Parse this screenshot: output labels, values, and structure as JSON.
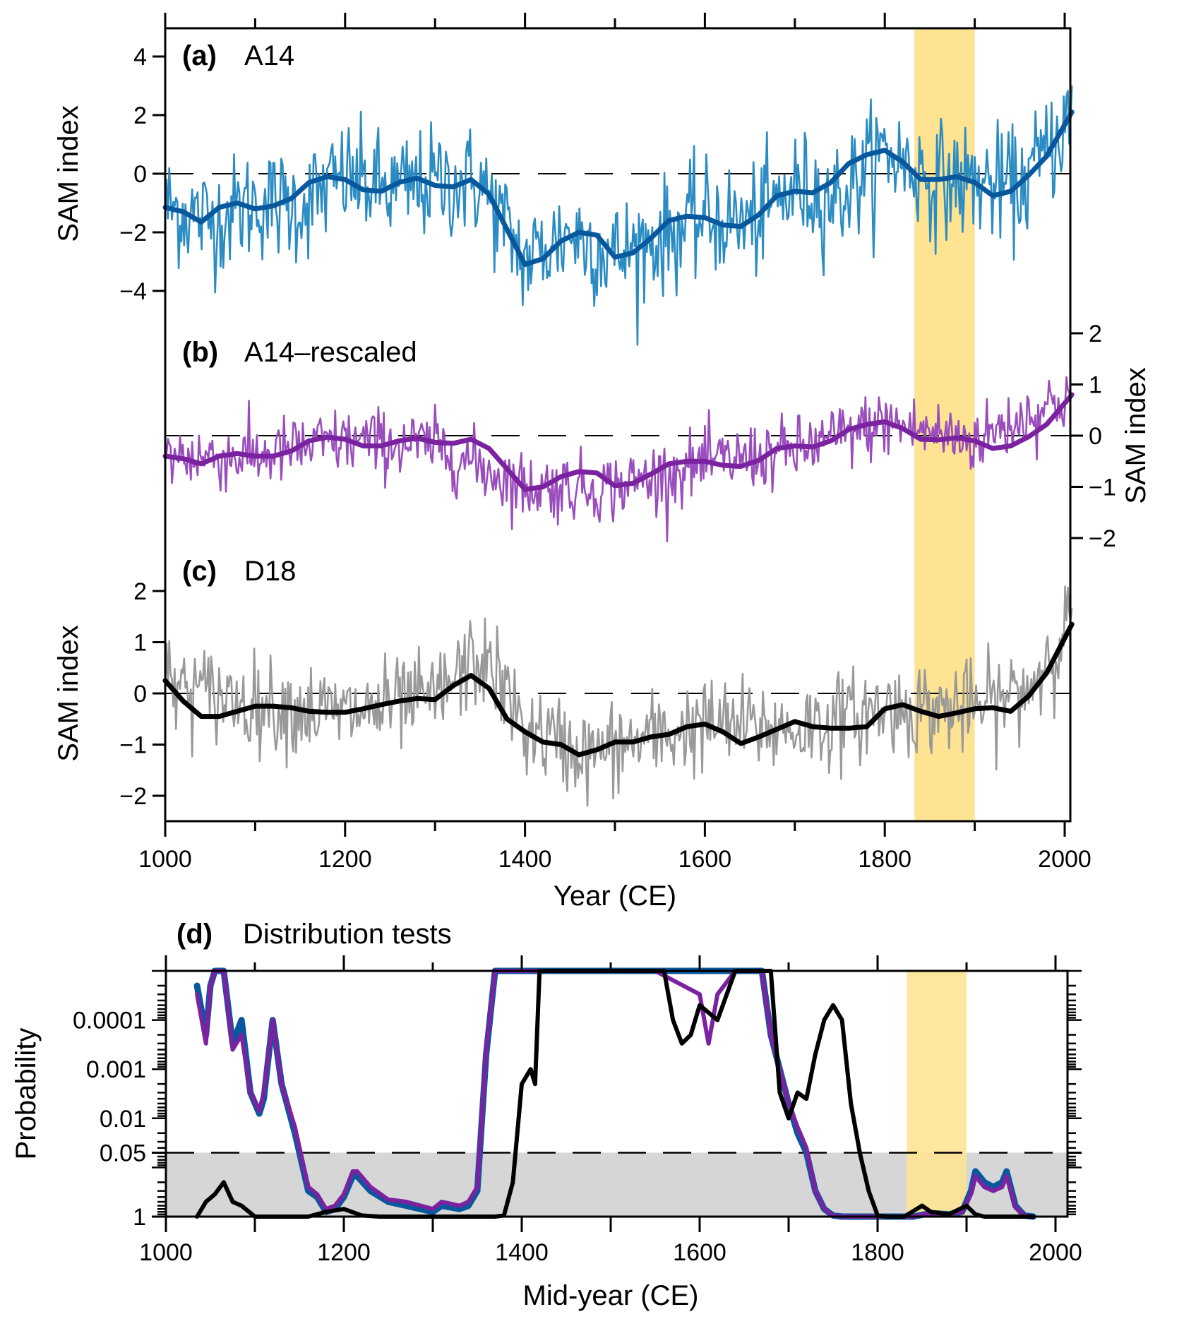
{
  "colors": {
    "a14_raw": "#2b8cc4",
    "a14_smooth": "#08589e",
    "rescaled_raw": "#9a4dbd",
    "rescaled_smooth": "#7b22a0",
    "d18_raw": "#999999",
    "d18_smooth": "#000000",
    "highlight_band": "#fde392",
    "significance_fill": "#d6d6d6"
  },
  "chart_data": [
    {
      "panel": "a",
      "type": "line",
      "letter": "(a)",
      "title": "A14",
      "xlabel": "",
      "ylabel": "SAM index",
      "ylabel_side": "left",
      "xlim": [
        1000,
        2010
      ],
      "ylim": [
        -5,
        5
      ],
      "yticks": [
        -4,
        -2,
        0,
        2,
        4
      ],
      "ytick_labels": [
        "−4",
        "−2",
        "0",
        "2",
        "4"
      ],
      "reference_line": 0,
      "highlight": [
        1833,
        1900
      ],
      "series": [
        {
          "name": "A14 annual",
          "style": "thin",
          "noise_amplitude": 1.6,
          "x": [
            1000,
            1050,
            1100,
            1150,
            1200,
            1250,
            1300,
            1350,
            1400,
            1450,
            1500,
            1550,
            1600,
            1650,
            1700,
            1750,
            1800,
            1850,
            1900,
            1950,
            2008
          ],
          "values": [
            -1.1,
            -1.6,
            -1.0,
            -1.1,
            -0.1,
            -0.6,
            -0.3,
            -0.3,
            -3.0,
            -2.0,
            -2.8,
            -2.2,
            -1.5,
            -1.7,
            -0.5,
            -0.8,
            0.8,
            -0.2,
            -0.3,
            -0.5,
            2.0
          ]
        },
        {
          "name": "A14 smoothed",
          "style": "thick",
          "x": [
            1000,
            1020,
            1040,
            1060,
            1080,
            1100,
            1120,
            1140,
            1160,
            1180,
            1200,
            1220,
            1240,
            1260,
            1280,
            1300,
            1320,
            1340,
            1360,
            1380,
            1400,
            1420,
            1440,
            1460,
            1480,
            1500,
            1520,
            1540,
            1560,
            1580,
            1600,
            1620,
            1640,
            1660,
            1680,
            1700,
            1720,
            1740,
            1760,
            1780,
            1800,
            1820,
            1840,
            1860,
            1880,
            1900,
            1920,
            1940,
            1960,
            1980,
            2008
          ],
          "values": [
            -1.15,
            -1.3,
            -1.65,
            -1.15,
            -1.0,
            -1.2,
            -1.1,
            -0.85,
            -0.3,
            -0.1,
            -0.2,
            -0.55,
            -0.6,
            -0.3,
            -0.15,
            -0.4,
            -0.45,
            -0.2,
            -0.7,
            -1.9,
            -3.1,
            -2.9,
            -2.3,
            -2.0,
            -2.1,
            -2.85,
            -2.7,
            -2.2,
            -1.6,
            -1.45,
            -1.5,
            -1.75,
            -1.8,
            -1.4,
            -0.75,
            -0.6,
            -0.65,
            -0.3,
            0.35,
            0.65,
            0.8,
            0.4,
            -0.2,
            -0.2,
            -0.1,
            -0.3,
            -0.75,
            -0.6,
            -0.05,
            0.6,
            2.1
          ]
        }
      ]
    },
    {
      "panel": "b",
      "type": "line",
      "letter": "(b)",
      "title": "A14–rescaled",
      "xlabel": "",
      "ylabel": "SAM index",
      "ylabel_side": "right",
      "xlim": [
        1000,
        2010
      ],
      "ylim": [
        -2.3,
        2.3
      ],
      "yticks": [
        -2,
        -1,
        0,
        1,
        2
      ],
      "ytick_labels": [
        "−2",
        "−1",
        "0",
        "1",
        "2"
      ],
      "reference_line": 0,
      "highlight": [
        1833,
        1900
      ],
      "series": [
        {
          "name": "A14-rescaled annual",
          "style": "thin",
          "noise_amplitude": 0.55,
          "x": [
            1000,
            1100,
            1200,
            1300,
            1400,
            1500,
            1600,
            1700,
            1800,
            1900,
            2008
          ],
          "values": [
            -0.4,
            -0.4,
            -0.1,
            -0.2,
            -1.0,
            -1.0,
            -0.55,
            -0.3,
            0.25,
            -0.1,
            0.8
          ]
        },
        {
          "name": "A14-rescaled smoothed",
          "style": "thick",
          "x": [
            1000,
            1020,
            1040,
            1060,
            1080,
            1100,
            1120,
            1140,
            1160,
            1180,
            1200,
            1220,
            1240,
            1260,
            1280,
            1300,
            1320,
            1340,
            1360,
            1380,
            1400,
            1420,
            1440,
            1460,
            1480,
            1500,
            1520,
            1540,
            1560,
            1580,
            1600,
            1620,
            1640,
            1660,
            1680,
            1700,
            1720,
            1740,
            1760,
            1780,
            1800,
            1820,
            1840,
            1860,
            1880,
            1900,
            1920,
            1940,
            1960,
            1980,
            2008
          ],
          "values": [
            -0.4,
            -0.45,
            -0.55,
            -0.4,
            -0.35,
            -0.4,
            -0.4,
            -0.3,
            -0.1,
            -0.03,
            -0.07,
            -0.2,
            -0.2,
            -0.1,
            -0.05,
            -0.13,
            -0.15,
            -0.07,
            -0.25,
            -0.65,
            -1.05,
            -1.0,
            -0.8,
            -0.7,
            -0.73,
            -0.98,
            -0.93,
            -0.75,
            -0.55,
            -0.5,
            -0.5,
            -0.58,
            -0.6,
            -0.48,
            -0.25,
            -0.2,
            -0.22,
            -0.1,
            0.12,
            0.22,
            0.27,
            0.14,
            -0.07,
            -0.08,
            -0.04,
            -0.1,
            -0.25,
            -0.2,
            -0.02,
            0.22,
            0.8
          ]
        }
      ]
    },
    {
      "panel": "c",
      "type": "line",
      "letter": "(c)",
      "title": "D18",
      "xlabel": "Year (CE)",
      "ylabel": "SAM index",
      "ylabel_side": "left",
      "xlim": [
        1000,
        2010
      ],
      "ylim": [
        -2.5,
        2.5
      ],
      "yticks": [
        -2,
        -1,
        0,
        1,
        2
      ],
      "ytick_labels": [
        "−2",
        "−1",
        "0",
        "1",
        "2"
      ],
      "xticks": [
        1000,
        1200,
        1400,
        1600,
        1800,
        2000
      ],
      "xtick_labels": [
        "1000",
        "1200",
        "1400",
        "1600",
        "1800",
        "2000"
      ],
      "reference_line": 0,
      "highlight": [
        1833,
        1900
      ],
      "series": [
        {
          "name": "D18 annual",
          "style": "thin",
          "noise_amplitude": 0.75,
          "x": [
            1000,
            1100,
            1200,
            1300,
            1340,
            1360,
            1400,
            1470,
            1600,
            1700,
            1800,
            1900,
            1960,
            2008
          ],
          "values": [
            0.2,
            -0.2,
            -0.4,
            -0.1,
            0.6,
            0.6,
            -0.7,
            -1.2,
            -0.6,
            -0.7,
            -0.3,
            -0.3,
            0.1,
            1.5
          ]
        },
        {
          "name": "D18 smoothed",
          "style": "thick",
          "x": [
            1000,
            1020,
            1040,
            1060,
            1080,
            1100,
            1120,
            1140,
            1160,
            1180,
            1200,
            1220,
            1240,
            1260,
            1280,
            1300,
            1320,
            1340,
            1360,
            1380,
            1400,
            1420,
            1440,
            1460,
            1480,
            1500,
            1520,
            1540,
            1560,
            1580,
            1600,
            1620,
            1640,
            1660,
            1680,
            1700,
            1720,
            1740,
            1760,
            1780,
            1800,
            1820,
            1840,
            1860,
            1880,
            1900,
            1920,
            1940,
            1960,
            1980,
            2008
          ],
          "values": [
            0.25,
            -0.15,
            -0.45,
            -0.45,
            -0.35,
            -0.25,
            -0.25,
            -0.28,
            -0.35,
            -0.37,
            -0.37,
            -0.3,
            -0.22,
            -0.15,
            -0.1,
            -0.12,
            0.15,
            0.35,
            0.1,
            -0.5,
            -0.75,
            -0.95,
            -1.0,
            -1.2,
            -1.1,
            -0.95,
            -0.95,
            -0.85,
            -0.8,
            -0.65,
            -0.6,
            -0.75,
            -0.98,
            -0.85,
            -0.7,
            -0.55,
            -0.65,
            -0.68,
            -0.68,
            -0.65,
            -0.3,
            -0.22,
            -0.35,
            -0.45,
            -0.38,
            -0.3,
            -0.28,
            -0.35,
            -0.05,
            0.4,
            1.35
          ]
        }
      ]
    },
    {
      "panel": "d",
      "type": "line",
      "letter": "(d)",
      "title": "Distribution tests",
      "xlabel": "Mid-year (CE)",
      "ylabel": "Probability",
      "ylabel_side": "left",
      "yscale": "log-inverted",
      "xlim": [
        1000,
        2020
      ],
      "ylim": [
        1,
        1e-05
      ],
      "yticks": [
        1,
        0.05,
        0.01,
        0.001,
        0.0001
      ],
      "ytick_labels": [
        "1",
        "0.05",
        "0.01",
        "0.001",
        "0.0001"
      ],
      "xticks": [
        1000,
        1200,
        1400,
        1600,
        1800,
        2000
      ],
      "xtick_labels": [
        "1000",
        "1200",
        "1400",
        "1600",
        "1800",
        "2000"
      ],
      "reference_line": 0.05,
      "shaded_region": [
        0.05,
        1
      ],
      "highlight": [
        1833,
        1900
      ],
      "series": [
        {
          "name": "A14 vs D18 (blue)",
          "style": "thick",
          "x": [
            1035,
            1045,
            1050,
            1055,
            1065,
            1075,
            1085,
            1095,
            1105,
            1110,
            1120,
            1130,
            1145,
            1160,
            1170,
            1180,
            1190,
            1200,
            1210,
            1215,
            1230,
            1250,
            1270,
            1300,
            1310,
            1330,
            1340,
            1350,
            1360,
            1370,
            1400,
            1500,
            1550,
            1600,
            1640,
            1660,
            1670,
            1680,
            1690,
            1700,
            1710,
            1720,
            1730,
            1740,
            1750,
            1760,
            1770,
            1780,
            1800,
            1840,
            1860,
            1880,
            1895,
            1905,
            1910,
            1920,
            1930,
            1940,
            1945,
            1955,
            1965,
            1975
          ],
          "values": [
            2e-05,
            0.0002,
            2e-05,
            1e-05,
            1e-05,
            0.0003,
            0.0001,
            0.003,
            0.008,
            0.004,
            0.0001,
            0.002,
            0.02,
            0.3,
            0.4,
            0.8,
            0.7,
            0.4,
            0.15,
            0.15,
            0.3,
            0.5,
            0.6,
            0.8,
            0.6,
            0.7,
            0.6,
            0.3,
            0.0005,
            1e-05,
            1e-05,
            1e-05,
            1e-05,
            1e-05,
            1e-05,
            1e-05,
            1e-05,
            0.0002,
            0.001,
            0.005,
            0.02,
            0.05,
            0.3,
            0.7,
            0.95,
            1.0,
            1.0,
            1.0,
            1.0,
            1.0,
            0.85,
            0.9,
            0.8,
            0.3,
            0.12,
            0.2,
            0.25,
            0.2,
            0.12,
            0.6,
            0.95,
            1.0
          ]
        },
        {
          "name": "A14-rescaled vs D18 (purple)",
          "style": "thick",
          "x": [
            1035,
            1045,
            1050,
            1055,
            1065,
            1075,
            1085,
            1095,
            1105,
            1110,
            1120,
            1130,
            1145,
            1160,
            1170,
            1180,
            1190,
            1200,
            1210,
            1215,
            1230,
            1250,
            1270,
            1300,
            1310,
            1330,
            1340,
            1350,
            1360,
            1370,
            1400,
            1500,
            1550,
            1600,
            1610,
            1620,
            1640,
            1660,
            1670,
            1680,
            1690,
            1700,
            1710,
            1720,
            1730,
            1740,
            1750,
            1760,
            1770,
            1780,
            1800,
            1840,
            1860,
            1880,
            1895,
            1905,
            1910,
            1920,
            1930,
            1940,
            1945,
            1955,
            1965,
            1975
          ],
          "values": [
            3e-05,
            0.0003,
            2e-05,
            1e-05,
            1e-05,
            0.0004,
            0.0002,
            0.003,
            0.007,
            0.003,
            0.0001,
            0.002,
            0.015,
            0.25,
            0.35,
            0.7,
            0.6,
            0.35,
            0.12,
            0.12,
            0.25,
            0.45,
            0.5,
            0.7,
            0.5,
            0.6,
            0.5,
            0.25,
            0.0004,
            1e-05,
            1e-05,
            1e-05,
            1e-05,
            3e-05,
            0.0003,
            3e-05,
            1e-05,
            1e-05,
            1e-05,
            0.0002,
            0.001,
            0.005,
            0.015,
            0.04,
            0.3,
            0.7,
            0.95,
            1.0,
            1.0,
            1.0,
            1.0,
            1.0,
            0.85,
            0.9,
            0.8,
            0.35,
            0.15,
            0.25,
            0.3,
            0.25,
            0.15,
            0.65,
            0.95,
            1.0
          ]
        },
        {
          "name": "A14 vs A14-rescaled (black)",
          "style": "thick",
          "x": [
            1035,
            1045,
            1055,
            1065,
            1075,
            1085,
            1100,
            1130,
            1160,
            1180,
            1200,
            1220,
            1240,
            1300,
            1370,
            1380,
            1390,
            1400,
            1410,
            1415,
            1420,
            1430,
            1500,
            1560,
            1570,
            1580,
            1590,
            1600,
            1620,
            1640,
            1660,
            1680,
            1690,
            1700,
            1710,
            1720,
            1730,
            1740,
            1750,
            1760,
            1770,
            1780,
            1790,
            1800,
            1810,
            1830,
            1850,
            1860,
            1880,
            1900,
            1910,
            1920,
            1950,
            1975
          ],
          "values": [
            1.0,
            0.5,
            0.35,
            0.2,
            0.5,
            0.6,
            1.0,
            1.0,
            1.0,
            0.8,
            0.7,
            0.95,
            1.0,
            1.0,
            1.0,
            0.95,
            0.2,
            0.002,
            0.001,
            0.002,
            1e-05,
            1e-05,
            1e-05,
            1e-05,
            0.0001,
            0.0003,
            0.0002,
            5e-05,
            0.0001,
            1e-05,
            1e-05,
            1e-05,
            0.003,
            0.01,
            0.003,
            0.004,
            0.0005,
            0.0001,
            5e-05,
            0.0001,
            0.005,
            0.05,
            0.3,
            0.95,
            1.0,
            1.0,
            0.6,
            0.8,
            0.9,
            0.6,
            0.9,
            1.0,
            1.0,
            1.0
          ]
        }
      ]
    }
  ]
}
